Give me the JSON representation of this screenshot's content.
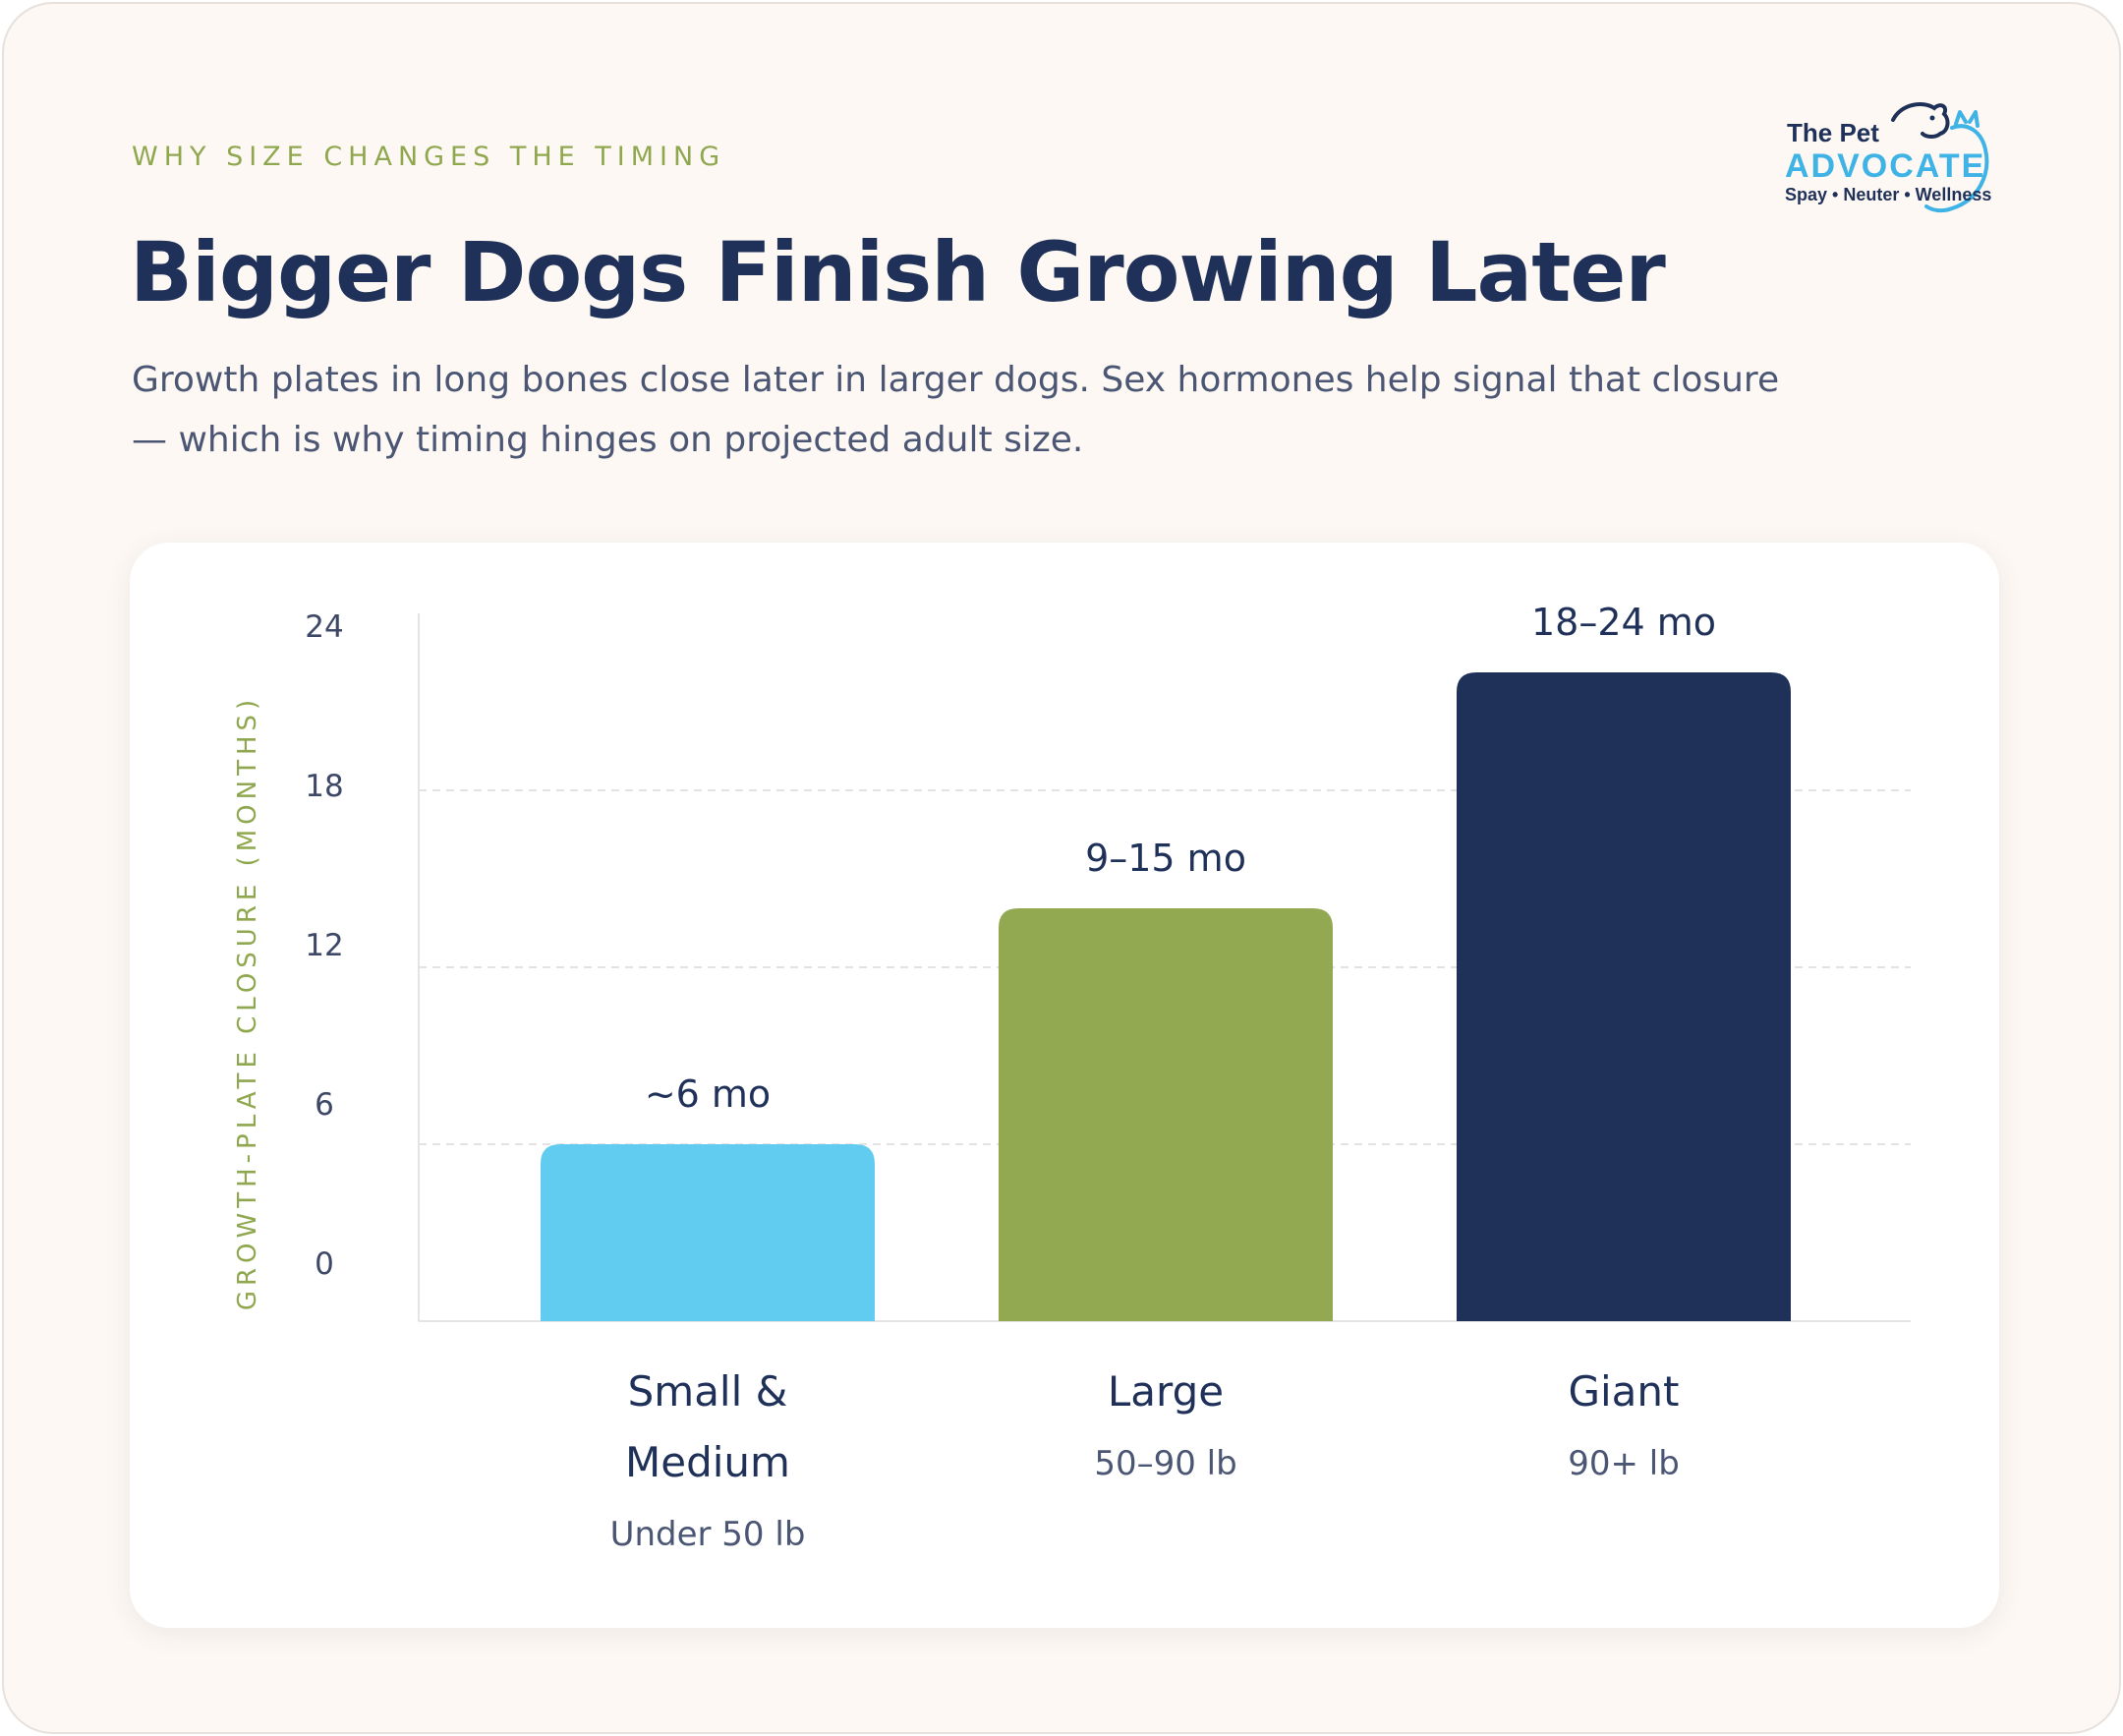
{
  "header": {
    "eyebrow": "WHY SIZE CHANGES THE TIMING",
    "title": "Bigger Dogs Finish Growing Later",
    "subtitle": "Growth plates in long bones close later in larger dogs. Sex hormones help signal that closure — which is why timing hinges on projected adult size."
  },
  "logo": {
    "line1": "The Pet",
    "line2": "ADVOCATE",
    "tagline": "Spay • Neuter • Wellness",
    "icon": "dog-and-cat-outline-icon"
  },
  "colors": {
    "navy": "#1f3159",
    "green": "#8fa74f",
    "sky": "#61cbf0",
    "text_muted": "#4a5673"
  },
  "chart_data": {
    "type": "bar",
    "ylabel": "GROWTH-PLATE CLOSURE (MONTHS)",
    "xlabel": "",
    "ylim": [
      0,
      24
    ],
    "yticks": [
      "0",
      "6",
      "12",
      "18",
      "24"
    ],
    "grid": true,
    "categories": [
      "Small & Medium",
      "Large",
      "Giant"
    ],
    "category_lines": [
      [
        "Small &",
        "Medium"
      ],
      [
        "Large"
      ],
      [
        "Giant"
      ]
    ],
    "sublabels": [
      "Under 50 lb",
      "50–90 lb",
      "90+ lb"
    ],
    "values": [
      6,
      14,
      22
    ],
    "value_labels": [
      "~6 mo",
      "9–15 mo",
      "18–24 mo"
    ],
    "bar_colors": [
      "#61cbf0",
      "#93a951",
      "#1f3159"
    ]
  }
}
